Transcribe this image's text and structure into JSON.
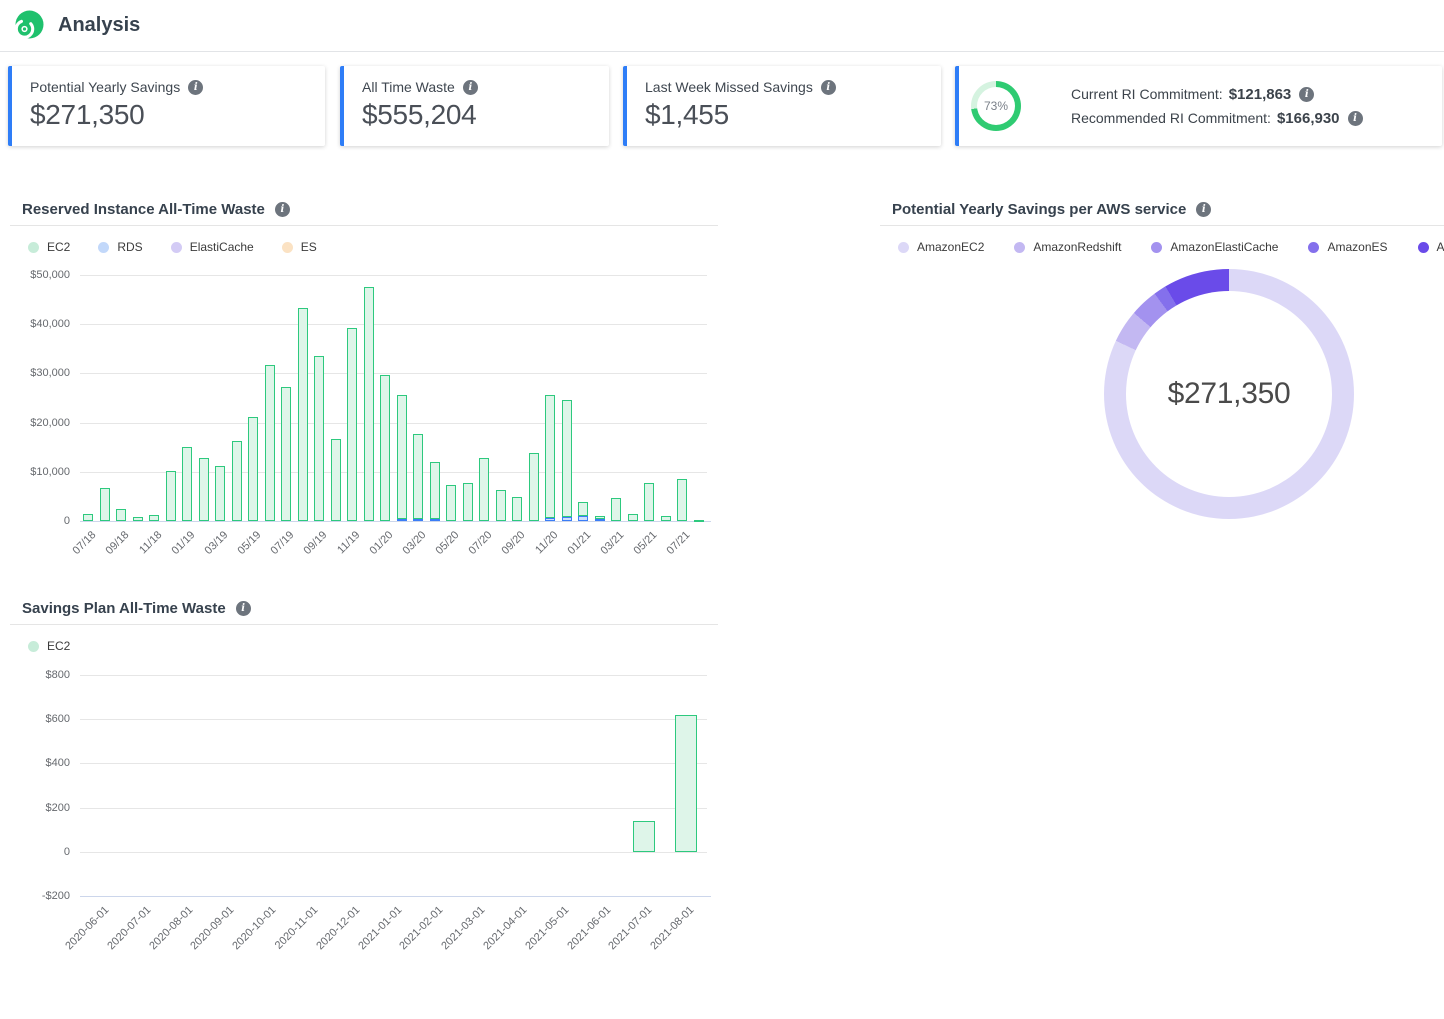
{
  "header": {
    "title": "Analysis",
    "logo_icon": "spot-swirl-logo"
  },
  "kpi_cards": [
    {
      "label": "Potential Yearly Savings",
      "value": "$271,350",
      "info_icon": "info-icon"
    },
    {
      "label": "All Time Waste",
      "value": "$555,204",
      "info_icon": "info-icon"
    },
    {
      "label": "Last Week Missed Savings",
      "value": "$1,455",
      "info_icon": "info-icon"
    },
    {
      "gauge": {
        "percent": 73,
        "label": "73%",
        "color": "#2fcb72",
        "track_color": "#d5f3e0"
      },
      "rows": [
        {
          "label": "Current RI Commitment:",
          "value": "$121,863",
          "info_icon": "info-icon"
        },
        {
          "label": "Recommended RI Commitment:",
          "value": "$166,930",
          "info_icon": "info-icon"
        }
      ]
    }
  ],
  "colors": {
    "accent_blue": "#2e7df7",
    "bar_green_stroke": "#2dc97e",
    "bar_green_fill": "#def5e9",
    "bar_blue_stroke": "#3b7df6",
    "bar_blue_fill": "#cfe0fc",
    "axis_line": "#ccd6eb",
    "gridline": "#e6e6e6"
  },
  "chart_data": [
    {
      "type": "bar",
      "title": "Reserved Instance All-Time Waste",
      "stacked": true,
      "ylim": [
        0,
        50000
      ],
      "ytick_interval": 10000,
      "xtick_every": 2,
      "legend": [
        {
          "label": "EC2",
          "color": "#c7ecd9"
        },
        {
          "label": "RDS",
          "color": "#c2d8fa"
        },
        {
          "label": "ElastiCache",
          "color": "#d3cbf5"
        },
        {
          "label": "ES",
          "color": "#fbe2c3"
        }
      ],
      "categories": [
        "07/18",
        "08/18",
        "09/18",
        "10/18",
        "11/18",
        "12/18",
        "01/19",
        "02/19",
        "03/19",
        "04/19",
        "05/19",
        "06/19",
        "07/19",
        "08/19",
        "09/19",
        "10/19",
        "11/19",
        "12/19",
        "01/20",
        "02/20",
        "03/20",
        "04/20",
        "05/20",
        "06/20",
        "07/20",
        "08/20",
        "09/20",
        "10/20",
        "11/20",
        "12/20",
        "01/21",
        "02/21",
        "03/21",
        "04/21",
        "05/21",
        "06/21",
        "07/21",
        "08/21"
      ],
      "series": [
        {
          "name": "EC2",
          "fill": "#def5e9",
          "stroke": "#2dc97e",
          "values": [
            1500,
            6800,
            2400,
            900,
            1300,
            10200,
            15000,
            12800,
            11200,
            16300,
            21200,
            31700,
            27200,
            43300,
            33600,
            16700,
            39200,
            47500,
            29700,
            25200,
            17300,
            11600,
            7300,
            7800,
            12900,
            6300,
            4800,
            13900,
            24900,
            23600,
            2800,
            700,
            4700,
            1400,
            7800,
            1100,
            8600,
            300
          ]
        },
        {
          "name": "RDS",
          "fill": "#cfe0fc",
          "stroke": "#3b7df6",
          "values": [
            0,
            0,
            0,
            0,
            0,
            0,
            0,
            0,
            0,
            0,
            0,
            0,
            0,
            0,
            0,
            0,
            0,
            0,
            0,
            400,
            400,
            400,
            0,
            0,
            0,
            0,
            0,
            0,
            700,
            900,
            1100,
            400,
            0,
            0,
            0,
            0,
            0,
            0
          ]
        },
        {
          "name": "ElastiCache",
          "fill": "#e6e1fa",
          "stroke": "#8f7bee",
          "values": [
            0,
            0,
            0,
            0,
            0,
            0,
            0,
            0,
            0,
            0,
            0,
            0,
            0,
            0,
            0,
            0,
            0,
            0,
            0,
            0,
            0,
            0,
            0,
            0,
            0,
            0,
            0,
            0,
            0,
            0,
            0,
            0,
            0,
            0,
            0,
            0,
            0,
            0
          ]
        },
        {
          "name": "ES",
          "fill": "#fdeeda",
          "stroke": "#f2a64b",
          "values": [
            0,
            0,
            0,
            0,
            0,
            0,
            0,
            0,
            0,
            0,
            0,
            0,
            0,
            0,
            0,
            0,
            0,
            0,
            0,
            0,
            0,
            0,
            0,
            0,
            0,
            0,
            0,
            0,
            0,
            0,
            0,
            0,
            0,
            0,
            0,
            0,
            0,
            0
          ]
        }
      ]
    },
    {
      "type": "pie",
      "title": "Potential Yearly Savings per AWS service",
      "center_label": "$271,350",
      "slices": [
        {
          "label": "AmazonEC2",
          "value": 222500,
          "color": "#dcd8f7"
        },
        {
          "label": "AmazonRedshift",
          "value": 11500,
          "color": "#c3b8f2"
        },
        {
          "label": "AmazonElastiCache",
          "value": 9800,
          "color": "#a392ef"
        },
        {
          "label": "AmazonES",
          "value": 4500,
          "color": "#8470ec"
        },
        {
          "label": "AmazonRDS",
          "value": 23050,
          "color": "#6a4be9"
        }
      ]
    },
    {
      "type": "bar",
      "title": "Savings Plan All-Time Waste",
      "stacked": false,
      "ylim": [
        -200,
        800
      ],
      "ytick_interval": 200,
      "xtick_every": 1,
      "legend": [
        {
          "label": "EC2",
          "color": "#c7ecd9"
        }
      ],
      "categories": [
        "2020-06-01",
        "2020-07-01",
        "2020-08-01",
        "2020-09-01",
        "2020-10-01",
        "2020-11-01",
        "2020-12-01",
        "2021-01-01",
        "2021-02-01",
        "2021-03-01",
        "2021-04-01",
        "2021-05-01",
        "2021-06-01",
        "2021-07-01",
        "2021-08-01"
      ],
      "series": [
        {
          "name": "EC2",
          "fill": "#def5e9",
          "stroke": "#2dc97e",
          "values": [
            0,
            0,
            0,
            0,
            0,
            0,
            0,
            0,
            0,
            0,
            0,
            0,
            0,
            140,
            620
          ]
        }
      ]
    }
  ]
}
